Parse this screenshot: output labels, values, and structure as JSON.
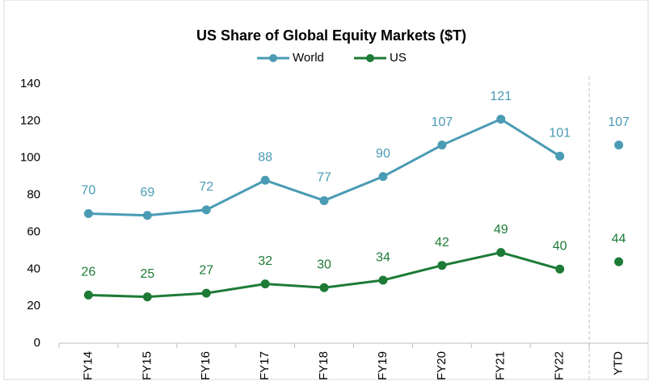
{
  "chart_data": {
    "type": "line",
    "title": "US Share of Global Equity Markets ($T)",
    "categories": [
      "FY14",
      "FY15",
      "FY16",
      "FY17",
      "FY18",
      "FY19",
      "FY20",
      "FY21",
      "FY22",
      "YTD"
    ],
    "series": [
      {
        "name": "World",
        "color": "#4a9bb4",
        "values": [
          70,
          69,
          72,
          88,
          77,
          90,
          107,
          121,
          101,
          107
        ]
      },
      {
        "name": "US",
        "color": "#1d7b36",
        "values": [
          26,
          25,
          27,
          32,
          30,
          34,
          42,
          49,
          40,
          44
        ]
      }
    ],
    "last_point_separate": true,
    "ylim": [
      0,
      140
    ],
    "yticks": [
      0,
      20,
      40,
      60,
      80,
      100,
      120,
      140
    ],
    "legend": "top",
    "grid": false
  }
}
